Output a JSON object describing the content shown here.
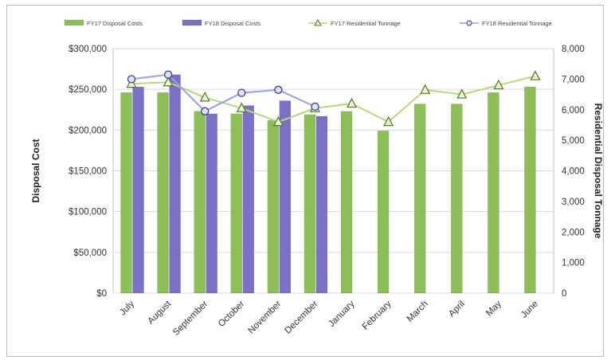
{
  "chart_data": {
    "type": "bar",
    "categories": [
      "July",
      "August",
      "September",
      "October",
      "November",
      "December",
      "January",
      "February",
      "March",
      "April",
      "May",
      "June"
    ],
    "series": [
      {
        "name": "FY17 Disposal Costs",
        "kind": "bar",
        "axis": "left",
        "color": "#8dbf57",
        "values": [
          246000,
          246000,
          223000,
          220000,
          212000,
          219000,
          223000,
          199000,
          232000,
          232000,
          246000,
          253000
        ]
      },
      {
        "name": "FY18 Disposal Costs",
        "kind": "bar",
        "axis": "left",
        "color": "#7a70c6",
        "values": [
          253000,
          268000,
          220000,
          230000,
          236000,
          217000,
          null,
          null,
          null,
          null,
          null,
          null
        ]
      },
      {
        "name": "FY17 Residential Tonnage",
        "kind": "line",
        "axis": "right",
        "color": "#b6d77a",
        "marker": "triangle",
        "values": [
          6850,
          6900,
          6400,
          6050,
          5600,
          6050,
          6200,
          5600,
          6650,
          6500,
          6800,
          7100
        ]
      },
      {
        "name": "FY18 Residential Tonnage",
        "kind": "line",
        "axis": "right",
        "color": "#9a9ee6",
        "marker": "circle",
        "values": [
          7000,
          7150,
          5950,
          6550,
          6650,
          6100,
          null,
          null,
          null,
          null,
          null,
          null
        ]
      }
    ],
    "y_left": {
      "label": "Disposal Cost",
      "min": 0,
      "max": 300000,
      "ticks": [
        "$0",
        "$50,000",
        "$100,000",
        "$150,000",
        "$200,000",
        "$250,000",
        "$300,000"
      ]
    },
    "y_right": {
      "label": "Residential Disposal Tonnage",
      "min": 0,
      "max": 8000,
      "ticks": [
        "0",
        "1,000",
        "2,000",
        "3,000",
        "4,000",
        "5,000",
        "6,000",
        "7,000",
        "8,000"
      ]
    },
    "legend_position": "top",
    "grid": true
  }
}
